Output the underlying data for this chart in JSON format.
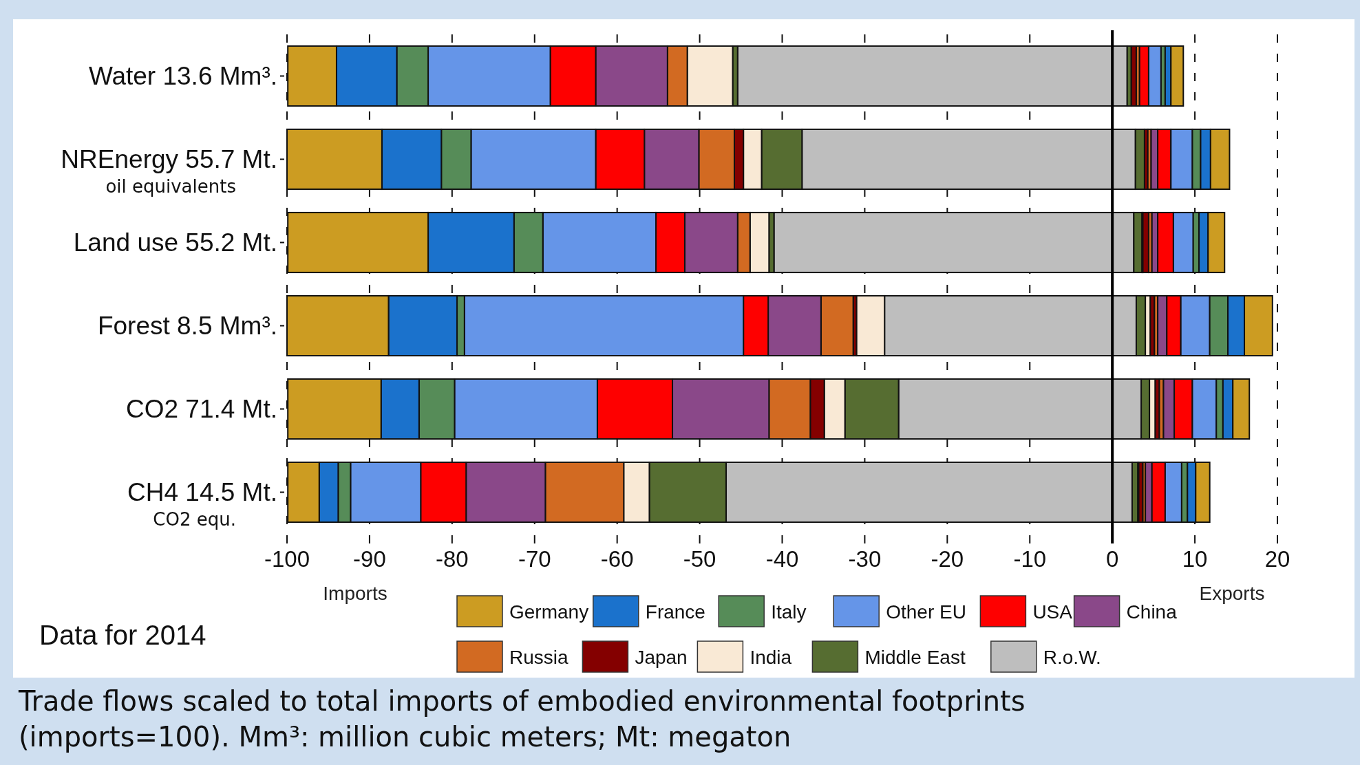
{
  "chart_data": {
    "type": "bar",
    "orientation": "horizontal",
    "stacked": true,
    "categories": [
      "Water 13.6 Mm³.",
      "NREnergy 55.7 Mt.\noil equivalents",
      "Land use 55.2 Mt.",
      "Forest 8.5 Mm³.",
      "CO2 71.4 Mt.",
      "CH4 14.5 Mt.\nCO2 equ."
    ],
    "xlim": [
      -100,
      20
    ],
    "xticks": [
      -100,
      -90,
      -80,
      -70,
      -60,
      -50,
      -40,
      -30,
      -20,
      -10,
      0,
      10,
      20
    ],
    "grid": "x",
    "legend": "bottom",
    "ref_lines": [
      {
        "axis": "x",
        "value": 0,
        "color": "#000000"
      }
    ],
    "annotations": [
      "Imports",
      "Exports",
      "Data for 2014",
      "Trade flows scaled to total imports of embodied environmental footprints (imports=100). Mm³: million cubic meters; Mt: megaton"
    ],
    "series": [
      {
        "name": "R.o.W.",
        "color": "#bebebe",
        "values": [
          -45.4,
          -37.6,
          -41.0,
          -27.6,
          -25.9,
          -46.8
        ]
      },
      {
        "name": "Middle East",
        "color": "#566d31",
        "values": [
          -0.6,
          -4.9,
          -0.6,
          0,
          -6.5,
          -9.3
        ]
      },
      {
        "name": "India",
        "color": "#f9e9d5",
        "values": [
          -5.5,
          -2.2,
          -2.3,
          -3.4,
          -2.5,
          -3.1
        ]
      },
      {
        "name": "Japan",
        "color": "#840000",
        "values": [
          0,
          -1.1,
          null,
          -0.4,
          -1.7,
          null
        ]
      },
      {
        "name": "Russia",
        "color": "#d26a22",
        "values": [
          -2.4,
          -4.3,
          -1.5,
          -3.9,
          -5.0,
          -9.5
        ]
      },
      {
        "name": "China",
        "color": "#8a4889",
        "values": [
          -8.7,
          -6.6,
          -6.4,
          -6.4,
          -11.7,
          -9.6
        ]
      },
      {
        "name": "USA",
        "color": "#fe0000",
        "values": [
          -5.5,
          -5.9,
          -3.5,
          -3.0,
          -9.1,
          -5.5
        ]
      },
      {
        "name": "Other EU",
        "color": "#6595e8",
        "values": [
          -14.8,
          -15.1,
          -13.7,
          -33.8,
          -17.3,
          -8.5
        ]
      },
      {
        "name": "Italy",
        "color": "#568c58",
        "values": [
          -3.8,
          -3.6,
          -3.5,
          -0.9,
          -4.3,
          -1.5
        ]
      },
      {
        "name": "France",
        "color": "#1b72cc",
        "values": [
          -7.3,
          -7.2,
          -10.4,
          -8.3,
          -4.6,
          -2.3
        ]
      },
      {
        "name": "Germany",
        "color": "#cc9c22",
        "values": [
          -5.9,
          -11.5,
          -17.0,
          -12.3,
          -11.3,
          -3.8
        ]
      },
      {
        "color": "#bebebe",
        "values": [
          1.8,
          2.8,
          2.6,
          2.9,
          3.5,
          2.4
        ]
      },
      {
        "color": "#566d31",
        "values": [
          0.5,
          1.1,
          1.0,
          1.1,
          1.0,
          0.7
        ]
      },
      {
        "color": "#f9e9d5",
        "values": [
          0,
          null,
          0.1,
          0.6,
          0.7,
          0.1
        ]
      },
      {
        "color": "#840000",
        "values": [
          0.6,
          0.4,
          0.7,
          0.5,
          0.5,
          0.5
        ]
      },
      {
        "color": "#d26a22",
        "values": [
          0.4,
          0.4,
          0.4,
          0.4,
          0.5,
          0.3
        ]
      },
      {
        "color": "#8a4889",
        "values": [
          null,
          0.8,
          0.7,
          1.1,
          1.3,
          0.8
        ]
      },
      {
        "color": "#fe0000",
        "values": [
          1.1,
          1.6,
          1.9,
          1.7,
          2.2,
          1.6
        ]
      },
      {
        "color": "#6595e8",
        "values": [
          1.5,
          2.6,
          2.4,
          3.5,
          2.9,
          2.0
        ]
      },
      {
        "color": "#568c58",
        "values": [
          0.5,
          1.0,
          0.7,
          2.2,
          0.8,
          0.7
        ]
      },
      {
        "color": "#1b72cc",
        "values": [
          0.7,
          1.2,
          1.1,
          2.0,
          1.2,
          1.0
        ]
      },
      {
        "color": "#cc9c22",
        "values": [
          1.5,
          2.3,
          2.0,
          3.4,
          2.0,
          1.7
        ]
      }
    ]
  }
}
